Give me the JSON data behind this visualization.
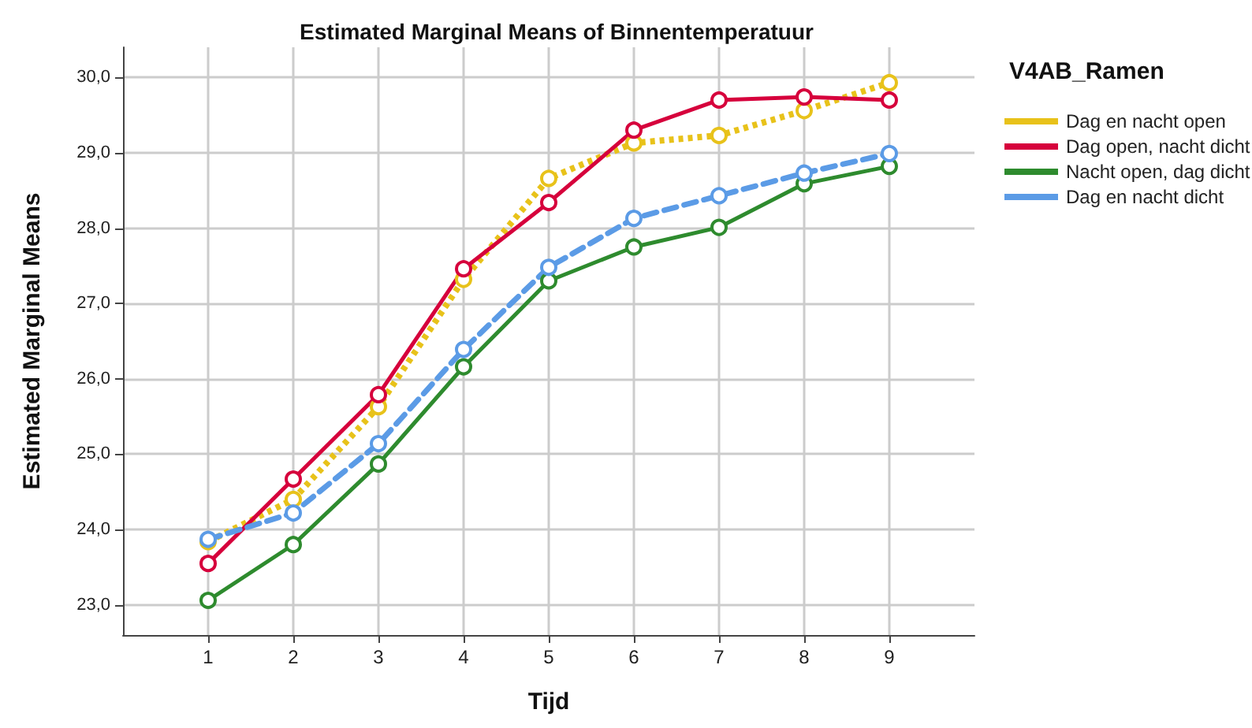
{
  "chart_data": {
    "type": "line",
    "title": "Estimated Marginal Means of Binnentemperatuur",
    "xlabel": "Tijd",
    "ylabel": "Estimated Marginal Means",
    "legend_title": "V4AB_Ramen",
    "x": [
      1,
      2,
      3,
      4,
      5,
      6,
      7,
      8,
      9
    ],
    "series": [
      {
        "name": "Dag en nacht open",
        "color": "#e8c21a",
        "line_style": "dotted",
        "values": [
          23.84,
          24.4,
          25.63,
          27.32,
          28.66,
          29.13,
          29.23,
          29.56,
          29.93
        ]
      },
      {
        "name": "Dag open, nacht dicht",
        "color": "#d6003c",
        "line_style": "solid",
        "values": [
          23.55,
          24.67,
          25.79,
          27.46,
          28.34,
          29.3,
          29.7,
          29.74,
          29.7
        ]
      },
      {
        "name": "Nacht open, dag dicht",
        "color": "#2e8b2e",
        "line_style": "solid",
        "values": [
          23.06,
          23.8,
          24.87,
          26.16,
          27.3,
          27.75,
          28.01,
          28.59,
          28.82
        ]
      },
      {
        "name": "Dag en nacht dicht",
        "color": "#5b9be6",
        "line_style": "dashed",
        "values": [
          23.87,
          24.22,
          25.14,
          26.39,
          27.48,
          28.13,
          28.43,
          28.73,
          28.99
        ]
      }
    ],
    "xlim": [
      0,
      10
    ],
    "xticks": [
      1,
      2,
      3,
      4,
      5,
      6,
      7,
      8,
      9
    ],
    "ylim": [
      22.6,
      30.4
    ],
    "yticks": [
      {
        "value": 23,
        "label": "23,0"
      },
      {
        "value": 24,
        "label": "24,0"
      },
      {
        "value": 25,
        "label": "25,0"
      },
      {
        "value": 26,
        "label": "26,0"
      },
      {
        "value": 27,
        "label": "27,0"
      },
      {
        "value": 28,
        "label": "28,0"
      },
      {
        "value": 29,
        "label": "29,0"
      },
      {
        "value": 30,
        "label": "30,0"
      }
    ],
    "grid": true,
    "legend": "right",
    "marker": "circle"
  }
}
